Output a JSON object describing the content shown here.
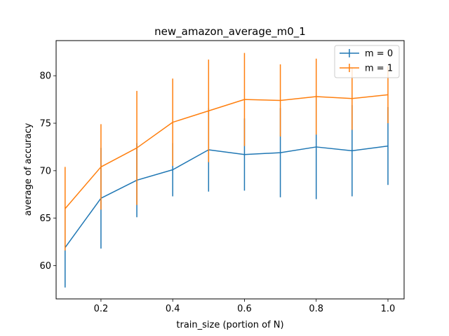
{
  "chart_data": {
    "type": "line",
    "title": "new_amazon_average_m0_1",
    "xlabel": "train_size (portion of N)",
    "ylabel": "average of accuracy",
    "xlim": [
      0.075,
      1.045
    ],
    "ylim": [
      56.5,
      83.7
    ],
    "x_ticks": [
      0.2,
      0.4,
      0.6,
      0.8,
      1.0
    ],
    "x_tick_labels": [
      "0.2",
      "0.4",
      "0.6",
      "0.8",
      "1.0"
    ],
    "y_ticks": [
      60,
      65,
      70,
      75,
      80
    ],
    "y_tick_labels": [
      "60",
      "65",
      "70",
      "75",
      "80"
    ],
    "grid": false,
    "legend_position": "top-right",
    "x": [
      0.1,
      0.2,
      0.3,
      0.4,
      0.5,
      0.6,
      0.7,
      0.8,
      0.9,
      1.0
    ],
    "series": [
      {
        "name": "m = 0",
        "color": "#1f77b4",
        "values": [
          61.9,
          67.1,
          69.0,
          70.1,
          72.2,
          71.7,
          71.9,
          72.5,
          72.1,
          72.6
        ],
        "error": [
          4.2,
          5.3,
          3.9,
          2.8,
          4.4,
          3.8,
          4.7,
          5.5,
          4.8,
          4.1
        ]
      },
      {
        "name": "m = 1",
        "color": "#ff7f0e",
        "values": [
          66.0,
          70.4,
          72.4,
          75.1,
          76.3,
          77.5,
          77.4,
          77.8,
          77.6,
          78.0
        ],
        "error": [
          4.4,
          4.5,
          6.0,
          4.6,
          5.4,
          4.9,
          3.8,
          4.0,
          3.3,
          3.0
        ]
      }
    ]
  }
}
